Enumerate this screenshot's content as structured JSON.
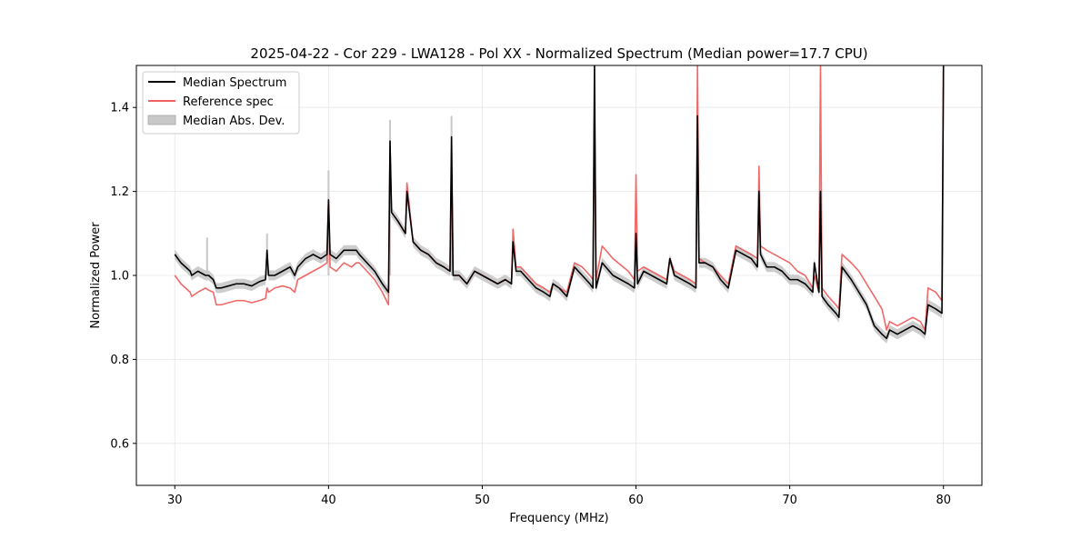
{
  "chart_data": {
    "type": "line",
    "title": "2025-04-22 - Cor 229 - LWA128 - Pol XX - Normalized Spectrum (Median power=17.7 CPU)",
    "xlabel": "Frequency (MHz)",
    "ylabel": "Normalized Power",
    "xlim": [
      27.5,
      82.5
    ],
    "ylim": [
      0.5,
      1.5
    ],
    "xticks": [
      30,
      40,
      50,
      60,
      70,
      80
    ],
    "yticks": [
      0.6,
      0.8,
      1.0,
      1.2,
      1.4
    ],
    "xtick_labels": [
      "30",
      "40",
      "50",
      "60",
      "70",
      "80"
    ],
    "ytick_labels": [
      "0.6",
      "0.8",
      "1.0",
      "1.2",
      "1.4"
    ],
    "grid": true,
    "legend_position": "top-left",
    "legend": [
      {
        "label": "Median Spectrum",
        "kind": "line",
        "color": "#000000"
      },
      {
        "label": "Reference spec",
        "kind": "line",
        "color": "#f06060"
      },
      {
        "label": "Median Abs. Dev.",
        "kind": "band",
        "color": "#c8c8c8"
      }
    ],
    "series": [
      {
        "name": "Median Spectrum",
        "color": "#000000",
        "x": [
          30.0,
          30.2,
          30.4,
          30.7,
          31.0,
          31.1,
          31.5,
          32.0,
          32.2,
          32.5,
          32.7,
          33.0,
          33.5,
          34.0,
          34.5,
          35.0,
          35.5,
          35.9,
          36.0,
          36.1,
          36.5,
          37.0,
          37.5,
          37.8,
          38.0,
          38.5,
          39.0,
          39.5,
          39.9,
          40.0,
          40.1,
          40.5,
          41.0,
          41.5,
          41.8,
          42.0,
          42.5,
          43.0,
          43.5,
          43.9,
          44.0,
          44.1,
          44.5,
          45.0,
          45.1,
          45.5,
          46.0,
          46.5,
          47.0,
          47.5,
          47.9,
          48.0,
          48.1,
          48.5,
          49.0,
          49.5,
          50.0,
          50.5,
          51.0,
          51.5,
          51.9,
          52.0,
          52.2,
          52.5,
          53.0,
          53.5,
          54.0,
          54.4,
          54.6,
          55.0,
          55.5,
          56.0,
          56.5,
          57.0,
          57.2,
          57.3,
          57.4,
          57.8,
          58.5,
          59.5,
          59.9,
          60.0,
          60.1,
          60.5,
          61.0,
          61.5,
          62.0,
          62.2,
          62.5,
          63.0,
          63.5,
          63.9,
          64.0,
          64.1,
          64.5,
          65.0,
          65.5,
          66.0,
          66.5,
          67.0,
          67.5,
          67.9,
          68.0,
          68.1,
          68.5,
          69.0,
          69.5,
          70.0,
          70.5,
          71.0,
          71.5,
          71.6,
          71.9,
          72.0,
          72.1,
          72.5,
          73.0,
          73.2,
          73.4,
          74.0,
          74.5,
          75.0,
          75.5,
          76.0,
          76.3,
          76.5,
          77.0,
          77.5,
          78.0,
          78.5,
          78.8,
          79.0,
          79.5,
          79.9,
          80.0
        ],
        "values": [
          1.05,
          1.04,
          1.03,
          1.02,
          1.01,
          1.0,
          1.01,
          1.0,
          1.0,
          0.99,
          0.97,
          0.97,
          0.975,
          0.98,
          0.98,
          0.975,
          0.985,
          0.99,
          1.06,
          1.0,
          1.0,
          1.01,
          1.02,
          1.0,
          1.02,
          1.04,
          1.05,
          1.04,
          1.05,
          1.18,
          1.05,
          1.04,
          1.06,
          1.06,
          1.06,
          1.05,
          1.03,
          1.01,
          0.98,
          0.96,
          1.32,
          1.15,
          1.13,
          1.1,
          1.2,
          1.08,
          1.06,
          1.05,
          1.03,
          1.02,
          1.01,
          1.33,
          1.0,
          1.0,
          0.98,
          1.01,
          1.0,
          0.99,
          0.98,
          0.99,
          0.98,
          1.08,
          1.01,
          1.01,
          0.99,
          0.97,
          0.96,
          0.95,
          0.98,
          0.97,
          0.95,
          1.02,
          1.0,
          0.98,
          0.97,
          1.5,
          0.97,
          1.03,
          1.0,
          0.98,
          0.97,
          1.1,
          0.98,
          1.01,
          1.0,
          0.99,
          0.98,
          1.04,
          1.0,
          0.99,
          0.98,
          0.97,
          1.38,
          1.03,
          1.03,
          1.02,
          0.99,
          0.97,
          1.06,
          1.05,
          1.04,
          1.02,
          1.2,
          1.05,
          1.02,
          1.02,
          1.01,
          0.99,
          0.99,
          0.98,
          0.96,
          1.03,
          0.96,
          1.2,
          0.95,
          0.93,
          0.91,
          0.9,
          1.02,
          0.99,
          0.96,
          0.93,
          0.88,
          0.86,
          0.85,
          0.87,
          0.86,
          0.87,
          0.88,
          0.87,
          0.86,
          0.93,
          0.92,
          0.91,
          1.5
        ]
      },
      {
        "name": "Reference spec",
        "color": "#f06060",
        "x": [
          30.0,
          30.2,
          30.4,
          30.7,
          31.0,
          31.1,
          31.5,
          32.0,
          32.2,
          32.5,
          32.7,
          33.0,
          33.5,
          34.0,
          34.5,
          35.0,
          35.5,
          35.9,
          36.0,
          36.1,
          36.5,
          37.0,
          37.5,
          37.8,
          38.0,
          38.5,
          39.0,
          39.5,
          39.9,
          40.0,
          40.1,
          40.5,
          41.0,
          41.5,
          41.8,
          42.0,
          42.5,
          43.0,
          43.5,
          43.9,
          44.0,
          44.1,
          44.5,
          45.0,
          45.1,
          45.5,
          46.0,
          46.5,
          47.0,
          47.5,
          47.9,
          48.0,
          48.1,
          48.5,
          49.0,
          49.5,
          50.0,
          50.5,
          51.0,
          51.5,
          51.9,
          52.0,
          52.2,
          52.5,
          53.0,
          53.5,
          54.0,
          54.4,
          54.6,
          55.0,
          55.5,
          56.0,
          56.5,
          57.0,
          57.2,
          57.3,
          57.4,
          57.8,
          58.5,
          59.5,
          59.9,
          60.0,
          60.1,
          60.5,
          61.0,
          61.5,
          62.0,
          62.2,
          62.5,
          63.0,
          63.5,
          63.9,
          64.0,
          64.1,
          64.5,
          65.0,
          65.5,
          66.0,
          66.5,
          67.0,
          67.5,
          67.9,
          68.0,
          68.1,
          68.5,
          69.0,
          69.5,
          70.0,
          70.5,
          71.0,
          71.5,
          71.6,
          71.9,
          72.0,
          72.1,
          72.5,
          73.0,
          73.2,
          73.4,
          74.0,
          74.5,
          75.0,
          75.5,
          76.0,
          76.3,
          76.5,
          77.0,
          77.5,
          78.0,
          78.5,
          78.8,
          79.0,
          79.5,
          79.9,
          80.0
        ],
        "values": [
          1.0,
          0.99,
          0.98,
          0.97,
          0.96,
          0.95,
          0.96,
          0.97,
          0.965,
          0.96,
          0.93,
          0.93,
          0.935,
          0.94,
          0.94,
          0.935,
          0.94,
          0.945,
          0.97,
          0.96,
          0.97,
          0.975,
          0.97,
          0.96,
          0.99,
          1.0,
          1.01,
          1.02,
          1.03,
          1.18,
          1.02,
          1.01,
          1.03,
          1.02,
          1.03,
          1.03,
          1.01,
          0.99,
          0.96,
          0.93,
          1.3,
          1.15,
          1.13,
          1.1,
          1.22,
          1.08,
          1.06,
          1.05,
          1.03,
          1.02,
          1.01,
          1.29,
          1.0,
          1.0,
          0.98,
          1.01,
          1.0,
          0.99,
          0.98,
          0.99,
          0.98,
          1.11,
          1.02,
          1.02,
          1.0,
          0.98,
          0.97,
          0.96,
          0.98,
          0.97,
          0.96,
          1.03,
          1.02,
          1.0,
          0.99,
          1.41,
          0.99,
          1.07,
          1.04,
          1.01,
          0.99,
          1.24,
          1.01,
          1.02,
          1.01,
          1.0,
          0.99,
          1.04,
          1.01,
          1.0,
          0.99,
          0.98,
          1.5,
          1.04,
          1.03,
          1.02,
          1.0,
          0.98,
          1.07,
          1.06,
          1.05,
          1.04,
          1.26,
          1.07,
          1.06,
          1.05,
          1.04,
          1.03,
          1.01,
          1.0,
          0.97,
          1.0,
          0.96,
          1.5,
          0.97,
          0.95,
          0.93,
          0.92,
          1.05,
          1.03,
          1.01,
          0.98,
          0.95,
          0.92,
          0.87,
          0.89,
          0.88,
          0.89,
          0.9,
          0.89,
          0.87,
          0.97,
          0.96,
          0.94,
          1.5
        ]
      }
    ],
    "band": {
      "name": "Median Abs. Dev.",
      "color": "#c8c8c8",
      "half_width": 0.012,
      "spike_tops": [
        {
          "x": 32.1,
          "y": 1.09
        },
        {
          "x": 36.0,
          "y": 1.1
        },
        {
          "x": 40.0,
          "y": 1.25
        },
        {
          "x": 44.0,
          "y": 1.37
        },
        {
          "x": 48.0,
          "y": 1.38
        }
      ]
    }
  }
}
